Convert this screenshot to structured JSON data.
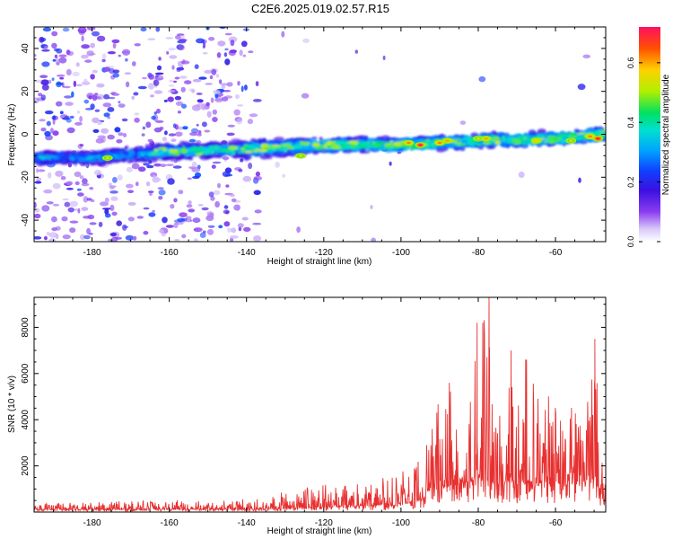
{
  "title": "C2E6.2025.019.02.57.R15",
  "chart_data": [
    {
      "type": "heatmap",
      "xlabel": "Height of straight line (km)",
      "ylabel": "Frequency (Hz)",
      "xlim": [
        -195,
        -47
      ],
      "ylim": [
        -50,
        50
      ],
      "xticks": [
        -180,
        -160,
        -140,
        -120,
        -100,
        -80,
        -60
      ],
      "yticks": [
        -40,
        -20,
        0,
        20,
        40
      ],
      "colorbar": {
        "label": "Normalized spectral amplitude",
        "range": [
          0.0,
          0.72
        ],
        "ticks": [
          0.0,
          0.2,
          0.4,
          0.6
        ],
        "tick_labels": [
          "0.0",
          "0.2",
          "0.4",
          "0.6"
        ]
      },
      "signal_band": {
        "description_values": "centre frequency (Hz) at height (km)",
        "x": [
          -195,
          -180,
          -160,
          -140,
          -120,
          -100,
          -80,
          -60,
          -48
        ],
        "center_freq": [
          -11,
          -11,
          -8,
          -7,
          -5,
          -5,
          -3,
          -2,
          0
        ],
        "band_halfwidth": [
          4,
          4,
          5,
          5,
          4,
          4,
          4,
          4,
          4
        ]
      },
      "hotspots": [
        {
          "x": -176,
          "f": -11,
          "amp": 0.55
        },
        {
          "x": -126,
          "f": -10,
          "amp": 0.55
        },
        {
          "x": -98,
          "f": -4,
          "amp": 0.62
        },
        {
          "x": -95,
          "f": -5,
          "amp": 0.7
        },
        {
          "x": -90,
          "f": -4,
          "amp": 0.62
        },
        {
          "x": -88,
          "f": -3,
          "amp": 0.6
        },
        {
          "x": -80,
          "f": -2,
          "amp": 0.55
        },
        {
          "x": -78,
          "f": -2,
          "amp": 0.6
        },
        {
          "x": -65,
          "f": -3,
          "amp": 0.58
        },
        {
          "x": -56,
          "f": -3,
          "amp": 0.55
        },
        {
          "x": -51,
          "f": -1,
          "amp": 0.62
        },
        {
          "x": -49,
          "f": -2,
          "amp": 0.7
        }
      ]
    },
    {
      "type": "line",
      "xlabel": "Height of straight line (km)",
      "ylabel": "SNR (10 * v/v)",
      "xlim": [
        -195,
        -47
      ],
      "ylim": [
        0,
        9300
      ],
      "xticks": [
        -180,
        -160,
        -140,
        -120,
        -100,
        -80,
        -60
      ],
      "yticks": [
        2000,
        4000,
        6000,
        8000
      ],
      "series": [
        {
          "name": "SNR",
          "color": "#e83030",
          "envelope_x": [
            -195,
            -170,
            -140,
            -130,
            -120,
            -110,
            -100,
            -95,
            -92,
            -88,
            -85,
            -82,
            -80,
            -78,
            -76,
            -74,
            -72,
            -70,
            -68,
            -66,
            -64,
            -62,
            -60,
            -58,
            -56,
            -54,
            -52,
            -50,
            -48,
            -47
          ],
          "envelope_peak": [
            350,
            500,
            550,
            900,
            1300,
            1400,
            1700,
            2500,
            4200,
            5600,
            5000,
            5500,
            8200,
            9300,
            5500,
            4300,
            7000,
            5500,
            6600,
            7000,
            4300,
            5200,
            4500,
            4200,
            4700,
            4500,
            5200,
            7500,
            4200,
            1800
          ],
          "envelope_base": [
            100,
            100,
            120,
            150,
            200,
            250,
            300,
            500,
            900,
            1100,
            1200,
            1300,
            1500,
            1400,
            1200,
            1300,
            1300,
            1200,
            1200,
            1300,
            1200,
            1200,
            1200,
            1200,
            1200,
            1200,
            1200,
            1300,
            800,
            300
          ]
        }
      ]
    }
  ]
}
